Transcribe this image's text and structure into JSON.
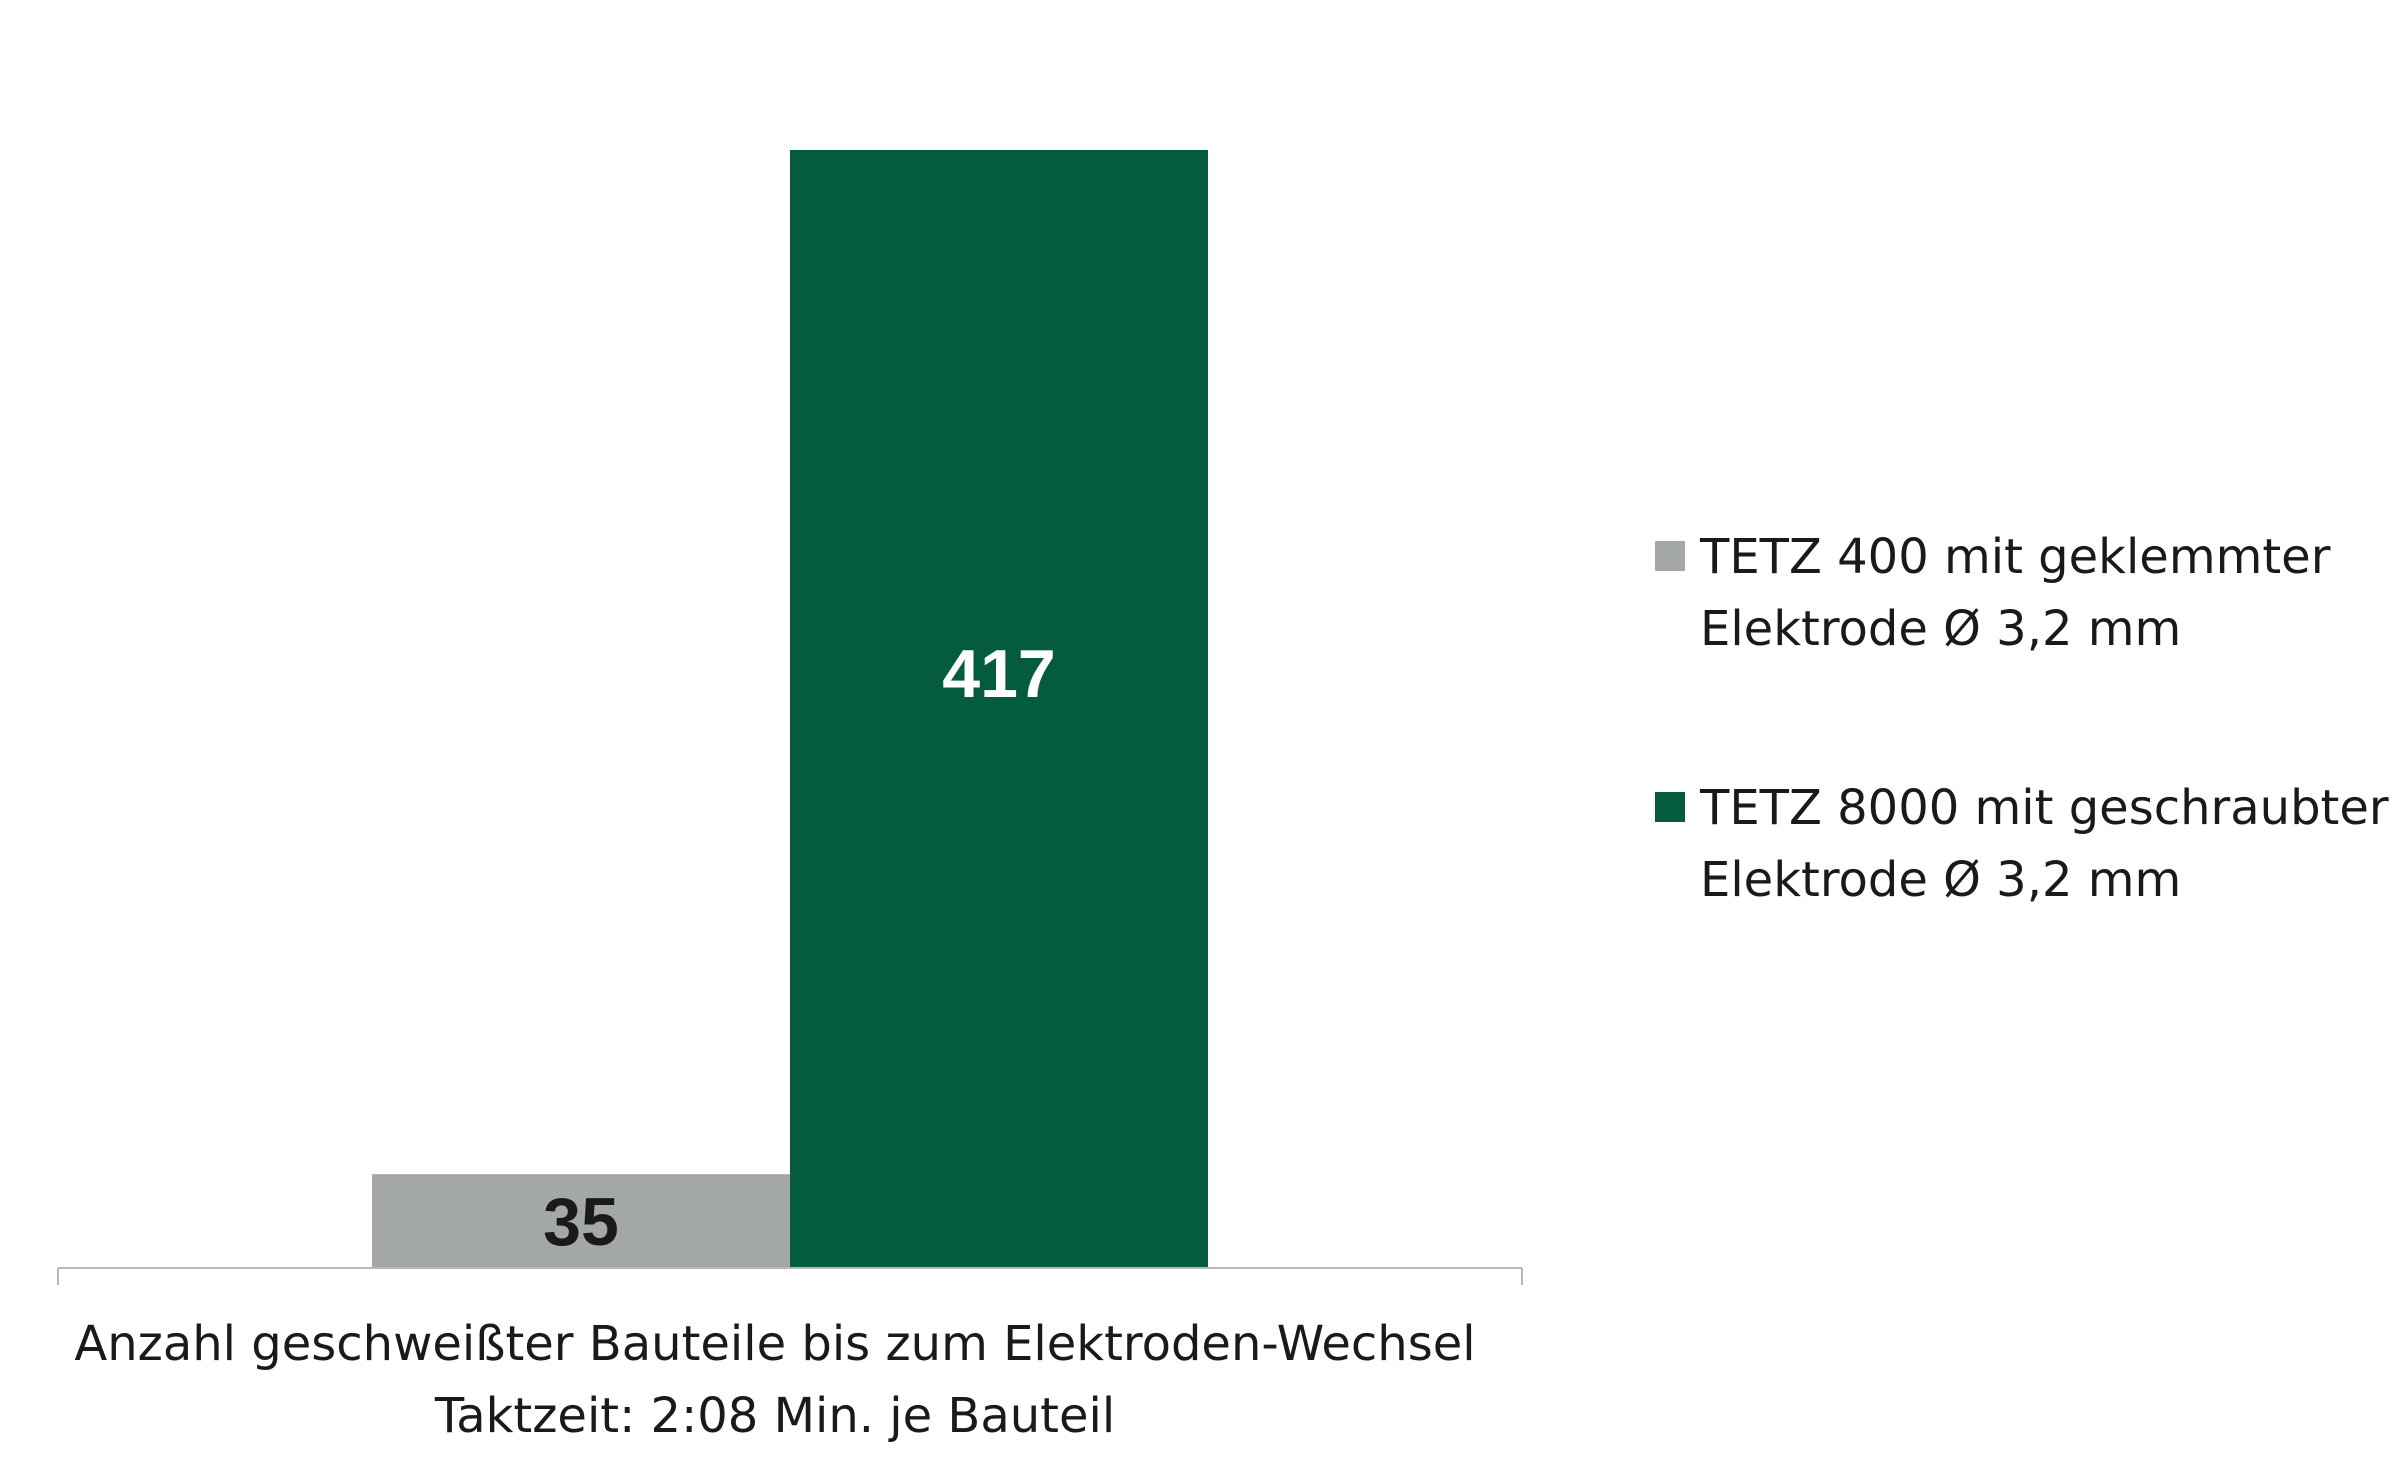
{
  "chart_data": {
    "type": "bar",
    "categories": [
      "Anzahl geschweißter Bauteile bis zum Elektroden-Wechsel"
    ],
    "xlabel_lines": [
      "Anzahl geschweißter Bauteile bis zum Elektroden-Wechsel",
      "Taktzeit: 2:08 Min. je Bauteil"
    ],
    "series": [
      {
        "name_lines": [
          "TETZ 400 mit geklemmter",
          "Elektrode Ø 3,2 mm"
        ],
        "values": [
          35
        ],
        "color": "#a3a7a5",
        "label_color": "#1a1a1a"
      },
      {
        "name_lines": [
          "TETZ 8000 mit geschraubter",
          "Elektrode Ø 3,2 mm"
        ],
        "values": [
          417
        ],
        "color": "#045c3c",
        "label_color": "#ffffff"
      }
    ],
    "ylim": [
      0,
      417
    ],
    "grid": false,
    "legend": "right"
  }
}
